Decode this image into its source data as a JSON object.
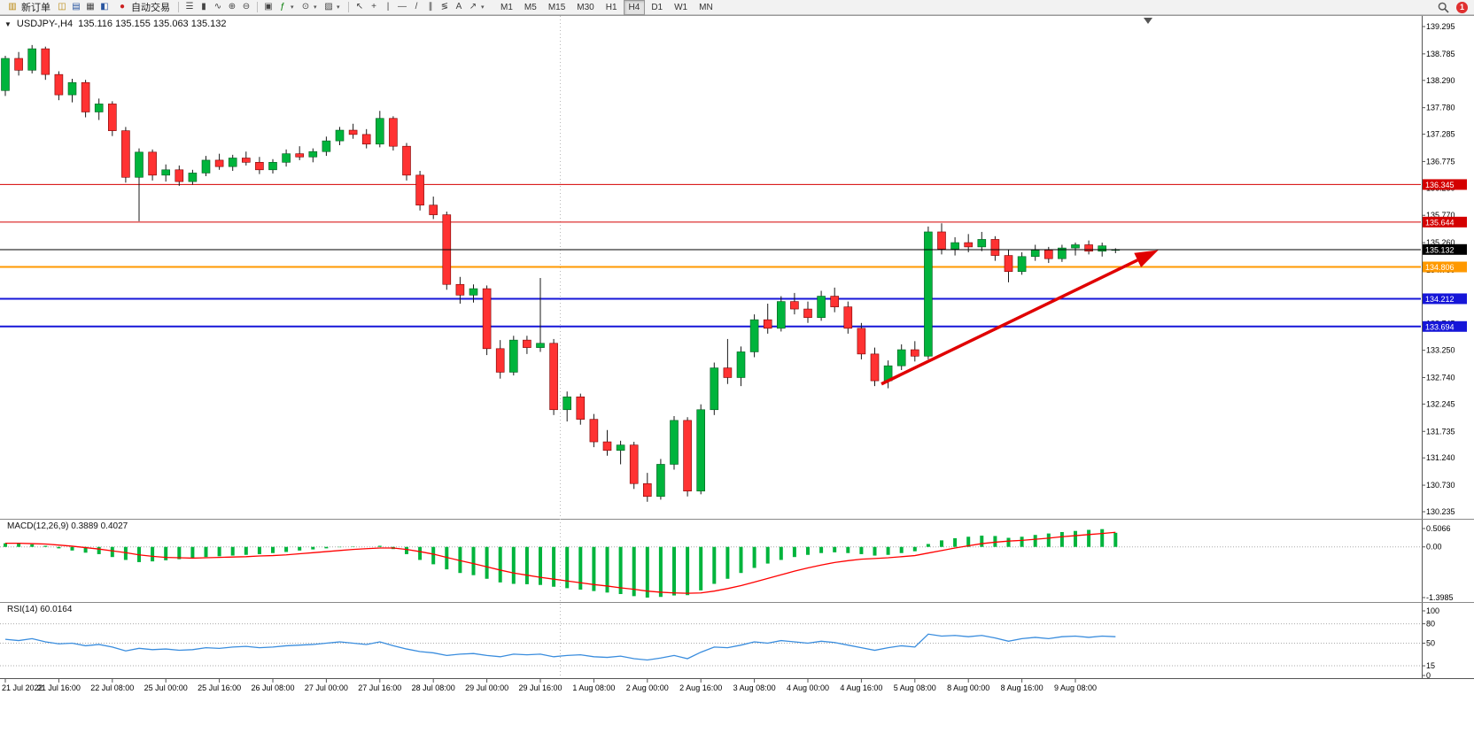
{
  "toolbar": {
    "new_order_label": "新订单",
    "auto_trading_label": "自动交易",
    "timeframes": [
      "M1",
      "M5",
      "M15",
      "M30",
      "H1",
      "H4",
      "D1",
      "W1",
      "MN"
    ],
    "active_timeframe": "H4",
    "notification_count": "1"
  },
  "icons": {
    "new_order": "▥",
    "charts": "◫",
    "market_watch": "▤",
    "data_window": "▦",
    "navigator": "◧",
    "autotrading": "●",
    "bar_chart": "☰",
    "candle_chart": "▮",
    "line_chart": "∿",
    "zoom_in": "⊕",
    "zoom_out": "⊖",
    "tile_windows": "▣",
    "indicators": "ƒ",
    "periods": "⊙",
    "templates": "▨",
    "cursor": "↖",
    "crosshair": "+",
    "vertical_line": "|",
    "horizontal_line": "—",
    "trendline": "/",
    "channel": "∥",
    "fibonacci": "≶",
    "text_tool": "A",
    "arrows_tool": "↗",
    "caret": "▾",
    "symbol_caret": "▼"
  },
  "chart": {
    "symbol_label": "USDJPY-,H4",
    "ohlc_label": "135.116  135.155  135.063  135.132"
  },
  "chart_data": [
    {
      "type": "candlestick",
      "title": "USDJPY- H4",
      "up_color": "#00b43c",
      "down_color": "#ff3232",
      "ylim": [
        130.1,
        139.5
      ],
      "y_ticks": [
        "139.295",
        "138.785",
        "138.290",
        "137.780",
        "137.285",
        "136.775",
        "136.280",
        "135.770",
        "135.260",
        "134.750",
        "134.240",
        "133.745",
        "133.250",
        "132.740",
        "132.245",
        "131.735",
        "131.240",
        "130.730",
        "130.235"
      ],
      "x_label_step": 4,
      "x_labels": [
        "21 Jul 2022",
        "21 Jul 16:00",
        "22 Jul 08:00",
        "25 Jul 00:00",
        "25 Jul 16:00",
        "26 Jul 08:00",
        "27 Jul 00:00",
        "27 Jul 16:00",
        "28 Jul 08:00",
        "29 Jul 00:00",
        "29 Jul 16:00",
        "1 Aug 08:00",
        "2 Aug 00:00",
        "2 Aug 16:00",
        "3 Aug 08:00",
        "4 Aug 00:00",
        "4 Aug 16:00",
        "5 Aug 08:00",
        "8 Aug 00:00",
        "8 Aug 16:00",
        "9 Aug 08:00"
      ],
      "candles": [
        [
          138.1,
          138.75,
          138.0,
          138.7
        ],
        [
          138.7,
          138.82,
          138.38,
          138.48
        ],
        [
          138.48,
          138.95,
          138.42,
          138.88
        ],
        [
          138.88,
          138.92,
          138.3,
          138.4
        ],
        [
          138.4,
          138.46,
          137.92,
          138.02
        ],
        [
          138.02,
          138.32,
          137.88,
          138.25
        ],
        [
          138.25,
          138.3,
          137.6,
          137.7
        ],
        [
          137.7,
          137.95,
          137.55,
          137.85
        ],
        [
          137.85,
          137.9,
          137.25,
          137.35
        ],
        [
          137.35,
          137.42,
          136.38,
          136.48
        ],
        [
          136.48,
          137.02,
          135.66,
          136.95
        ],
        [
          136.95,
          137.0,
          136.42,
          136.52
        ],
        [
          136.52,
          136.72,
          136.4,
          136.62
        ],
        [
          136.62,
          136.7,
          136.32,
          136.4
        ],
        [
          136.4,
          136.62,
          136.34,
          136.56
        ],
        [
          136.56,
          136.88,
          136.5,
          136.8
        ],
        [
          136.8,
          136.92,
          136.62,
          136.68
        ],
        [
          136.68,
          136.9,
          136.6,
          136.84
        ],
        [
          136.84,
          136.96,
          136.7,
          136.76
        ],
        [
          136.76,
          136.86,
          136.54,
          136.62
        ],
        [
          136.62,
          136.82,
          136.55,
          136.76
        ],
        [
          136.76,
          137.0,
          136.68,
          136.92
        ],
        [
          136.92,
          137.06,
          136.8,
          136.86
        ],
        [
          136.86,
          137.02,
          136.76,
          136.96
        ],
        [
          136.96,
          137.24,
          136.88,
          137.16
        ],
        [
          137.16,
          137.42,
          137.08,
          137.36
        ],
        [
          137.36,
          137.48,
          137.2,
          137.28
        ],
        [
          137.28,
          137.38,
          137.02,
          137.1
        ],
        [
          137.1,
          137.72,
          137.04,
          137.58
        ],
        [
          137.58,
          137.62,
          136.98,
          137.06
        ],
        [
          137.06,
          137.12,
          136.42,
          136.52
        ],
        [
          136.52,
          136.6,
          135.86,
          135.96
        ],
        [
          135.96,
          136.12,
          135.7,
          135.78
        ],
        [
          135.78,
          135.84,
          134.38,
          134.48
        ],
        [
          134.48,
          134.62,
          134.12,
          134.28
        ],
        [
          134.28,
          134.48,
          134.14,
          134.4
        ],
        [
          134.4,
          134.46,
          133.16,
          133.28
        ],
        [
          133.28,
          133.44,
          132.72,
          132.84
        ],
        [
          132.84,
          133.52,
          132.78,
          133.44
        ],
        [
          133.44,
          133.52,
          133.18,
          133.3
        ],
        [
          133.3,
          134.6,
          133.22,
          133.38
        ],
        [
          133.38,
          133.46,
          132.04,
          132.14
        ],
        [
          132.14,
          132.48,
          131.92,
          132.38
        ],
        [
          132.38,
          132.44,
          131.86,
          131.96
        ],
        [
          131.96,
          132.06,
          131.44,
          131.54
        ],
        [
          131.54,
          131.76,
          131.28,
          131.38
        ],
        [
          131.38,
          131.56,
          131.12,
          131.48
        ],
        [
          131.48,
          131.54,
          130.66,
          130.76
        ],
        [
          130.76,
          130.96,
          130.42,
          130.52
        ],
        [
          130.52,
          131.22,
          130.46,
          131.12
        ],
        [
          131.12,
          132.02,
          131.02,
          131.94
        ],
        [
          131.94,
          132.0,
          130.52,
          130.62
        ],
        [
          130.62,
          132.24,
          130.56,
          132.14
        ],
        [
          132.14,
          133.02,
          132.04,
          132.92
        ],
        [
          132.92,
          133.46,
          132.62,
          132.74
        ],
        [
          132.74,
          133.32,
          132.58,
          133.22
        ],
        [
          133.22,
          133.92,
          133.12,
          133.82
        ],
        [
          133.82,
          134.12,
          133.56,
          133.66
        ],
        [
          133.66,
          134.26,
          133.6,
          134.16
        ],
        [
          134.16,
          134.32,
          133.92,
          134.02
        ],
        [
          134.02,
          134.16,
          133.76,
          133.86
        ],
        [
          133.86,
          134.36,
          133.8,
          134.26
        ],
        [
          134.26,
          134.42,
          133.96,
          134.06
        ],
        [
          134.06,
          134.16,
          133.56,
          133.66
        ],
        [
          133.66,
          133.76,
          133.08,
          133.18
        ],
        [
          133.18,
          133.3,
          132.58,
          132.68
        ],
        [
          132.68,
          133.06,
          132.54,
          132.96
        ],
        [
          132.96,
          133.36,
          132.88,
          133.26
        ],
        [
          133.26,
          133.42,
          133.04,
          133.14
        ],
        [
          133.14,
          135.56,
          133.08,
          135.46
        ],
        [
          135.46,
          135.62,
          135.04,
          135.14
        ],
        [
          135.14,
          135.36,
          135.02,
          135.26
        ],
        [
          135.26,
          135.42,
          135.08,
          135.18
        ],
        [
          135.18,
          135.46,
          135.1,
          135.32
        ],
        [
          135.32,
          135.38,
          134.92,
          135.02
        ],
        [
          135.02,
          135.12,
          134.52,
          134.72
        ],
        [
          134.72,
          135.08,
          134.66,
          135.0
        ],
        [
          135.0,
          135.22,
          134.92,
          135.12
        ],
        [
          135.12,
          135.18,
          134.88,
          134.96
        ],
        [
          134.96,
          135.22,
          134.9,
          135.16
        ],
        [
          135.16,
          135.26,
          135.02,
          135.22
        ],
        [
          135.22,
          135.3,
          135.04,
          135.1
        ],
        [
          135.1,
          135.26,
          135.0,
          135.2
        ],
        [
          135.116,
          135.155,
          135.063,
          135.132
        ]
      ],
      "levels": [
        {
          "price": 136.345,
          "label": "136.345",
          "color": "#d40000",
          "width": 1
        },
        {
          "price": 135.644,
          "label": "135.644",
          "color": "#d40000",
          "width": 1
        },
        {
          "price": 134.806,
          "label": "134.806",
          "color": "#ff9900",
          "width": 2
        },
        {
          "price": 134.212,
          "label": "134.212",
          "color": "#1616d8",
          "width": 2
        },
        {
          "price": 133.694,
          "label": "133.694",
          "color": "#1616d8",
          "width": 2
        }
      ],
      "current": {
        "price": 135.132,
        "label": "135.132"
      },
      "trend_arrow": {
        "from": {
          "candle": 65.5,
          "price": 132.62
        },
        "to": {
          "candle": 86.2,
          "price": 135.12
        },
        "color": "#e00000"
      }
    },
    {
      "type": "bar",
      "name": "MACD",
      "label": "MACD(12,26,9) 0.3889 0.4027",
      "main_value": 0.3889,
      "signal_value": 0.4027,
      "hist_color": "#00b43c",
      "signal_color": "#ff0000",
      "y_ticks": [
        "0.5066",
        "0.00",
        "-1.3985"
      ],
      "histogram": [
        0.1,
        0.09,
        0.07,
        0.03,
        -0.04,
        -0.1,
        -0.16,
        -0.2,
        -0.28,
        -0.36,
        -0.42,
        -0.4,
        -0.37,
        -0.34,
        -0.31,
        -0.28,
        -0.26,
        -0.24,
        -0.22,
        -0.2,
        -0.17,
        -0.14,
        -0.1,
        -0.07,
        -0.04,
        -0.01,
        0.01,
        0.0,
        0.03,
        -0.06,
        -0.2,
        -0.36,
        -0.48,
        -0.62,
        -0.72,
        -0.78,
        -0.88,
        -0.98,
        -1.02,
        -1.03,
        -1.05,
        -1.1,
        -1.14,
        -1.18,
        -1.22,
        -1.26,
        -1.3,
        -1.36,
        -1.3985,
        -1.38,
        -1.34,
        -1.33,
        -1.2,
        -1.02,
        -0.88,
        -0.72,
        -0.58,
        -0.46,
        -0.36,
        -0.28,
        -0.22,
        -0.17,
        -0.15,
        -0.17,
        -0.2,
        -0.24,
        -0.22,
        -0.17,
        -0.12,
        0.08,
        0.18,
        0.24,
        0.28,
        0.31,
        0.3,
        0.25,
        0.28,
        0.33,
        0.37,
        0.41,
        0.44,
        0.47,
        0.49,
        0.3889
      ],
      "signal": [
        0.1,
        0.1,
        0.09,
        0.08,
        0.05,
        0.02,
        -0.02,
        -0.06,
        -0.11,
        -0.16,
        -0.22,
        -0.26,
        -0.29,
        -0.3,
        -0.31,
        -0.3,
        -0.29,
        -0.28,
        -0.27,
        -0.25,
        -0.24,
        -0.22,
        -0.19,
        -0.16,
        -0.13,
        -0.1,
        -0.07,
        -0.05,
        -0.03,
        -0.03,
        -0.07,
        -0.13,
        -0.2,
        -0.29,
        -0.38,
        -0.46,
        -0.55,
        -0.64,
        -0.72,
        -0.78,
        -0.84,
        -0.89,
        -0.94,
        -0.99,
        -1.04,
        -1.08,
        -1.13,
        -1.17,
        -1.22,
        -1.25,
        -1.27,
        -1.28,
        -1.27,
        -1.22,
        -1.15,
        -1.07,
        -0.97,
        -0.87,
        -0.77,
        -0.67,
        -0.58,
        -0.5,
        -0.43,
        -0.38,
        -0.34,
        -0.32,
        -0.3,
        -0.27,
        -0.24,
        -0.17,
        -0.1,
        -0.03,
        0.03,
        0.09,
        0.13,
        0.16,
        0.18,
        0.21,
        0.24,
        0.28,
        0.31,
        0.34,
        0.37,
        0.4027
      ]
    },
    {
      "type": "line",
      "name": "RSI",
      "label": "RSI(14) 60.0164",
      "value": 60.0164,
      "line_color": "#3a8dde",
      "y_ticks": [
        "100",
        "80",
        "50",
        "15",
        "0"
      ],
      "level_lines": [
        80,
        50,
        15
      ],
      "values": [
        56,
        54,
        57,
        52,
        49,
        50,
        46,
        48,
        44,
        38,
        42,
        40,
        41,
        39,
        40,
        43,
        42,
        44,
        45,
        43,
        44,
        46,
        47,
        48,
        50,
        52,
        50,
        48,
        52,
        46,
        41,
        37,
        35,
        31,
        33,
        34,
        31,
        29,
        33,
        32,
        33,
        29,
        31,
        32,
        29,
        28,
        30,
        26,
        24,
        27,
        31,
        26,
        36,
        44,
        43,
        47,
        52,
        50,
        54,
        52,
        50,
        53,
        51,
        47,
        43,
        39,
        43,
        46,
        44,
        64,
        61,
        62,
        60,
        62,
        58,
        53,
        57,
        59,
        57,
        60,
        61,
        59,
        61,
        60.0164
      ]
    }
  ]
}
